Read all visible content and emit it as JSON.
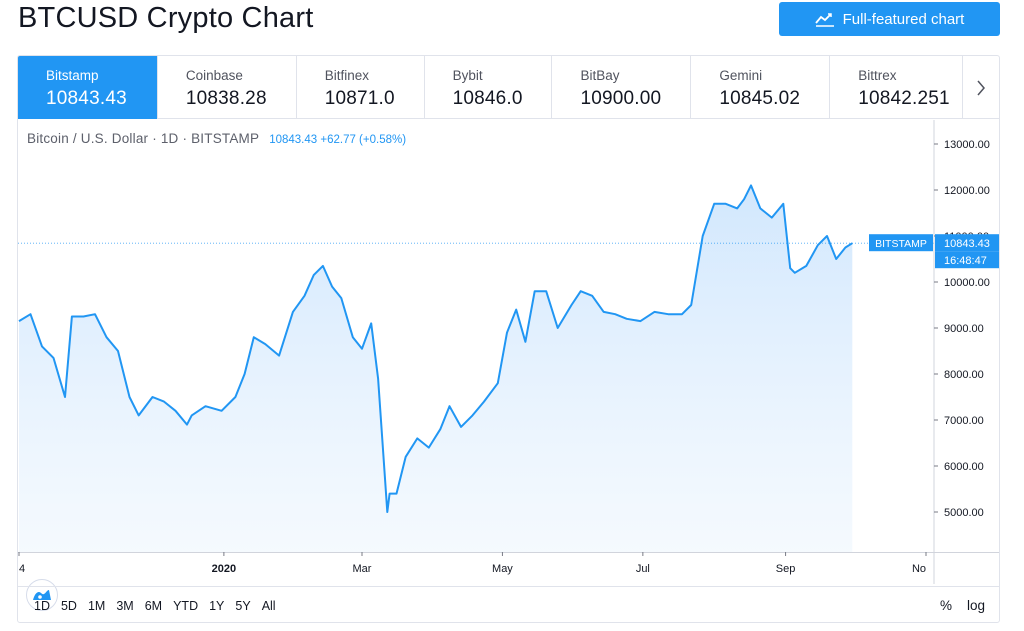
{
  "header": {
    "title": "BTCUSD Crypto Chart",
    "full_chart_label": "Full-featured chart"
  },
  "exchanges": [
    {
      "name": "Bitstamp",
      "price": "10843.43",
      "active": true
    },
    {
      "name": "Coinbase",
      "price": "10838.28",
      "active": false
    },
    {
      "name": "Bitfinex",
      "price": "10871.0",
      "active": false
    },
    {
      "name": "Bybit",
      "price": "10846.0",
      "active": false
    },
    {
      "name": "BitBay",
      "price": "10900.00",
      "active": false
    },
    {
      "name": "Gemini",
      "price": "10845.02",
      "active": false
    },
    {
      "name": "Bittrex",
      "price": "10842.251",
      "active": false
    }
  ],
  "legend": {
    "symbol": "Bitcoin / U.S. Dollar · 1D · BITSTAMP",
    "value": "10843.43 +62.77 (+0.58%)"
  },
  "price_tag": {
    "exchange": "BITSTAMP",
    "price": "10843.43",
    "countdown": "16:48:47"
  },
  "ranges": [
    "1D",
    "5D",
    "1M",
    "3M",
    "6M",
    "YTD",
    "1Y",
    "5Y",
    "All"
  ],
  "scale_buttons": {
    "percent": "%",
    "log": "log"
  },
  "colors": {
    "accent": "#2196f3",
    "line": "#2196f3",
    "area_top": "#d6eafd",
    "border": "#e0e3eb"
  },
  "icons": {
    "chart_icon": "chart-line-icon",
    "next": "chevron-right-icon",
    "logo": "tradingview-logo-icon"
  },
  "chart_data": {
    "type": "area",
    "title": "",
    "xlabel": "",
    "ylabel": "",
    "ylim": [
      4200,
      13200
    ],
    "x_tick_labels": [
      "4",
      "2020",
      "Mar",
      "May",
      "Jul",
      "Sep",
      "No"
    ],
    "y_tick_labels": [
      "13000.00",
      "12000.00",
      "11000.00",
      "10000.00",
      "9000.00",
      "8000.00",
      "7000.00",
      "6000.00",
      "5000.00"
    ],
    "y_ticks": [
      13000,
      12000,
      11000,
      10000,
      9000,
      8000,
      7000,
      6000,
      5000
    ],
    "last_value": 10843.43,
    "series": [
      {
        "x": [
          "2019-10-04",
          "2019-10-09",
          "2019-10-14",
          "2019-10-19",
          "2019-10-24",
          "2019-10-27",
          "2019-11-01",
          "2019-11-06",
          "2019-11-11",
          "2019-11-16",
          "2019-11-21",
          "2019-11-25",
          "2019-12-01",
          "2019-12-06",
          "2019-12-11",
          "2019-12-16",
          "2019-12-18",
          "2019-12-24",
          "2019-12-31",
          "2020-01-06",
          "2020-01-10",
          "2020-01-14",
          "2020-01-19",
          "2020-01-25",
          "2020-01-31",
          "2020-02-05",
          "2020-02-09",
          "2020-02-13",
          "2020-02-17",
          "2020-02-21",
          "2020-02-26",
          "2020-03-01",
          "2020-03-05",
          "2020-03-08",
          "2020-03-12",
          "2020-03-13",
          "2020-03-16",
          "2020-03-20",
          "2020-03-25",
          "2020-03-30",
          "2020-04-04",
          "2020-04-08",
          "2020-04-13",
          "2020-04-18",
          "2020-04-23",
          "2020-04-29",
          "2020-05-03",
          "2020-05-07",
          "2020-05-11",
          "2020-05-15",
          "2020-05-20",
          "2020-05-25",
          "2020-05-31",
          "2020-06-04",
          "2020-06-09",
          "2020-06-14",
          "2020-06-19",
          "2020-06-24",
          "2020-06-30",
          "2020-07-06",
          "2020-07-12",
          "2020-07-18",
          "2020-07-22",
          "2020-07-27",
          "2020-08-01",
          "2020-08-06",
          "2020-08-11",
          "2020-08-14",
          "2020-08-17",
          "2020-08-21",
          "2020-08-26",
          "2020-08-31",
          "2020-09-03",
          "2020-09-05",
          "2020-09-10",
          "2020-09-15",
          "2020-09-19",
          "2020-09-23",
          "2020-09-27",
          "2020-09-30"
        ],
        "values": [
          9150,
          9300,
          8600,
          8350,
          7500,
          9250,
          9250,
          9300,
          8800,
          8500,
          7500,
          7100,
          7500,
          7400,
          7200,
          6900,
          7100,
          7300,
          7200,
          7500,
          8000,
          8800,
          8650,
          8400,
          9350,
          9700,
          10150,
          10350,
          9900,
          9650,
          8800,
          8550,
          9100,
          7900,
          5000,
          5400,
          5400,
          6200,
          6600,
          6400,
          6800,
          7300,
          6850,
          7100,
          7400,
          7800,
          8900,
          9400,
          8700,
          9800,
          9800,
          9000,
          9500,
          9800,
          9700,
          9350,
          9300,
          9200,
          9150,
          9350,
          9300,
          9300,
          9500,
          11000,
          11700,
          11700,
          11600,
          11800,
          12100,
          11600,
          11400,
          11700,
          10300,
          10200,
          10350,
          10800,
          11000,
          10500,
          10750,
          10843
        ]
      }
    ]
  }
}
